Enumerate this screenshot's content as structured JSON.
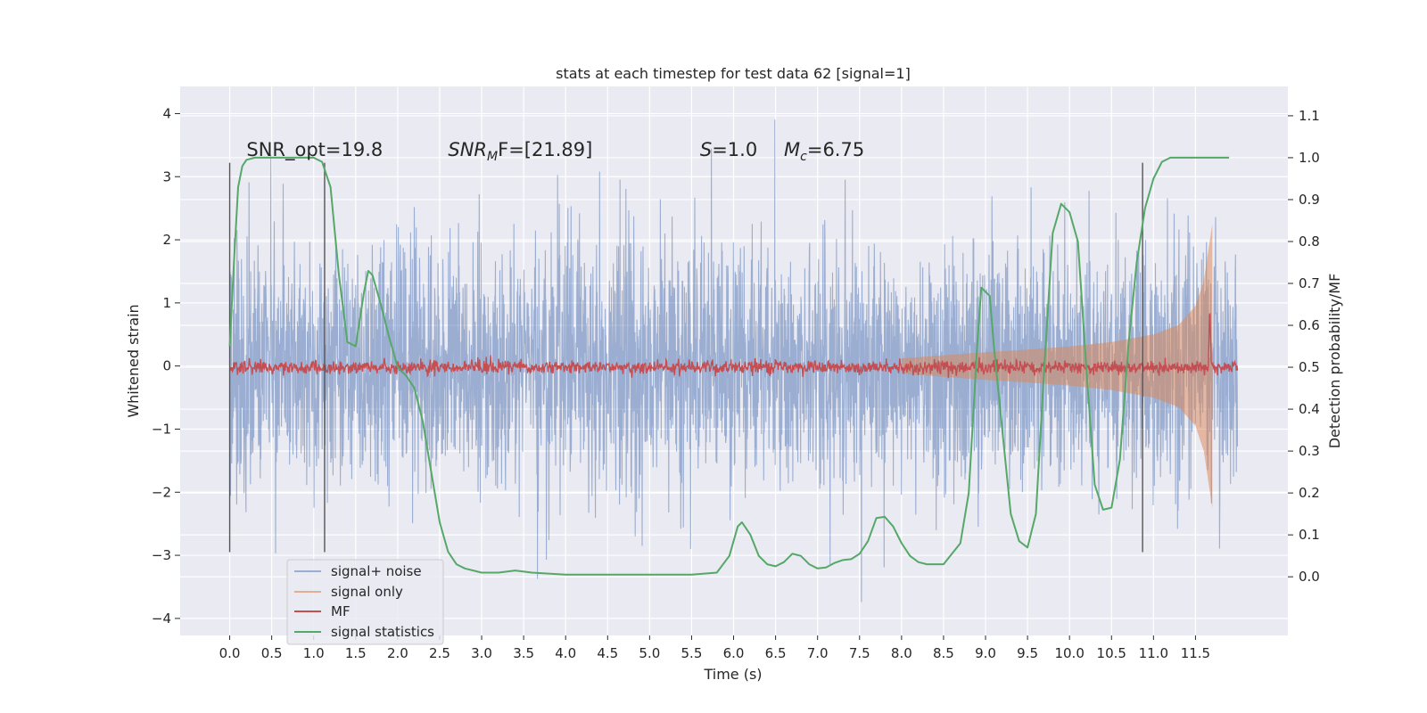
{
  "chart_data": {
    "type": "line",
    "title": "stats at each timestep for test data 62 [signal=1]",
    "xlabel": "Time (s)",
    "ylabel": "Whitened strain",
    "y2label": "Detection probability/MF",
    "xlim": [
      -0.59,
      12.6
    ],
    "ylim": [
      -4.27,
      4.43
    ],
    "y2lim": [
      -0.14,
      1.17
    ],
    "xticks": [
      0.0,
      0.5,
      1.0,
      1.5,
      2.0,
      2.5,
      3.0,
      3.5,
      4.0,
      4.5,
      5.0,
      5.5,
      6.0,
      6.5,
      7.0,
      7.5,
      8.0,
      8.5,
      9.0,
      9.5,
      10.0,
      10.5,
      11.0,
      11.5
    ],
    "xtick_labels": [
      "0.0",
      "0.5",
      "1.0",
      "1.5",
      "2.0",
      "2.5",
      "3.0",
      "3.5",
      "4.0",
      "4.5",
      "5.0",
      "5.5",
      "6.0",
      "6.5",
      "7.0",
      "7.5",
      "8.0",
      "8.5",
      "9.0",
      "9.5",
      "10.0",
      "10.5",
      "11.0",
      "11.5"
    ],
    "yticks": [
      -4,
      -3,
      -2,
      -1,
      0,
      1,
      2,
      3,
      4
    ],
    "ytick_labels": [
      "−4",
      "−3",
      "−2",
      "−1",
      "0",
      "1",
      "2",
      "3",
      "4"
    ],
    "y2ticks": [
      0.0,
      0.1,
      0.2,
      0.3,
      0.4,
      0.5,
      0.6,
      0.7,
      0.8,
      0.9,
      1.0,
      1.1
    ],
    "y2tick_labels": [
      "0.0",
      "0.1",
      "0.2",
      "0.3",
      "0.4",
      "0.5",
      "0.6",
      "0.7",
      "0.8",
      "0.9",
      "1.0",
      "1.1"
    ],
    "grid": true,
    "legend_position": "lower-left",
    "series": [
      {
        "name": "signal+ noise",
        "color": "#4c72b0",
        "axis": "left",
        "kind": "noise",
        "x_range": [
          0.0,
          12.0
        ],
        "std": 0.95
      },
      {
        "name": "signal only",
        "color": "#dd8452",
        "axis": "left",
        "kind": "chirp",
        "envelope_x": [
          8.0,
          8.5,
          9.0,
          9.5,
          10.0,
          10.5,
          11.0,
          11.3,
          11.5,
          11.6,
          11.65,
          11.7
        ],
        "envelope_y": [
          0.12,
          0.17,
          0.22,
          0.26,
          0.31,
          0.38,
          0.5,
          0.65,
          0.95,
          1.35,
          1.8,
          2.25
        ]
      },
      {
        "name": "MF",
        "color": "#c44e52",
        "axis": "right",
        "kind": "mf",
        "x_range": [
          0.0,
          12.0
        ],
        "baseline": 0.5,
        "peak": {
          "x": 11.67,
          "y": 0.63
        }
      },
      {
        "name": "signal statistics",
        "color": "#55a868",
        "axis": "right",
        "kind": "line",
        "x": [
          0.0,
          0.05,
          0.1,
          0.15,
          0.2,
          0.3,
          0.5,
          0.8,
          1.0,
          1.1,
          1.2,
          1.3,
          1.4,
          1.5,
          1.6,
          1.65,
          1.7,
          1.8,
          1.9,
          2.0,
          2.1,
          2.2,
          2.3,
          2.4,
          2.5,
          2.6,
          2.7,
          2.8,
          3.0,
          3.2,
          3.4,
          3.6,
          4.0,
          4.5,
          5.0,
          5.5,
          5.8,
          5.95,
          6.05,
          6.1,
          6.2,
          6.3,
          6.4,
          6.5,
          6.6,
          6.7,
          6.8,
          6.9,
          7.0,
          7.1,
          7.2,
          7.3,
          7.4,
          7.5,
          7.6,
          7.7,
          7.8,
          7.9,
          8.0,
          8.1,
          8.2,
          8.3,
          8.5,
          8.7,
          8.8,
          8.9,
          8.95,
          9.05,
          9.1,
          9.2,
          9.3,
          9.4,
          9.5,
          9.6,
          9.7,
          9.8,
          9.9,
          10.0,
          10.1,
          10.2,
          10.3,
          10.4,
          10.5,
          10.6,
          10.7,
          10.8,
          10.9,
          11.0,
          11.1,
          11.2,
          11.4,
          11.7,
          11.9
        ],
        "y": [
          0.55,
          0.75,
          0.93,
          0.98,
          0.995,
          1.0,
          1.0,
          1.0,
          1.0,
          0.99,
          0.93,
          0.72,
          0.56,
          0.55,
          0.68,
          0.73,
          0.72,
          0.65,
          0.57,
          0.5,
          0.48,
          0.45,
          0.37,
          0.25,
          0.13,
          0.06,
          0.03,
          0.02,
          0.01,
          0.01,
          0.015,
          0.01,
          0.005,
          0.005,
          0.005,
          0.005,
          0.01,
          0.05,
          0.12,
          0.13,
          0.1,
          0.05,
          0.03,
          0.025,
          0.035,
          0.055,
          0.05,
          0.03,
          0.02,
          0.022,
          0.033,
          0.04,
          0.042,
          0.055,
          0.085,
          0.14,
          0.143,
          0.12,
          0.08,
          0.05,
          0.035,
          0.03,
          0.03,
          0.08,
          0.2,
          0.55,
          0.69,
          0.67,
          0.55,
          0.35,
          0.15,
          0.085,
          0.07,
          0.15,
          0.5,
          0.82,
          0.89,
          0.87,
          0.8,
          0.5,
          0.22,
          0.16,
          0.165,
          0.28,
          0.55,
          0.75,
          0.88,
          0.95,
          0.99,
          1.0,
          1.0,
          1.0,
          1.0
        ]
      }
    ],
    "vlines": [
      0.0,
      1.13,
      10.87
    ],
    "vline_range": [
      -2.95,
      3.22
    ],
    "annotations": [
      {
        "text": "SNR_opt=19.8",
        "x": 0.2,
        "y": 3.33
      },
      {
        "kind": "snr_mf",
        "base": "SNR",
        "sub": "M",
        "tail": "F=[21.89]",
        "x": 2.6,
        "y": 3.33
      },
      {
        "kind": "s",
        "base": "S",
        "tail": "=1.0",
        "x": 5.6,
        "y": 3.33
      },
      {
        "kind": "mc",
        "base": "M",
        "sub": "c",
        "tail": "=6.75",
        "x": 6.6,
        "y": 3.33
      }
    ]
  }
}
